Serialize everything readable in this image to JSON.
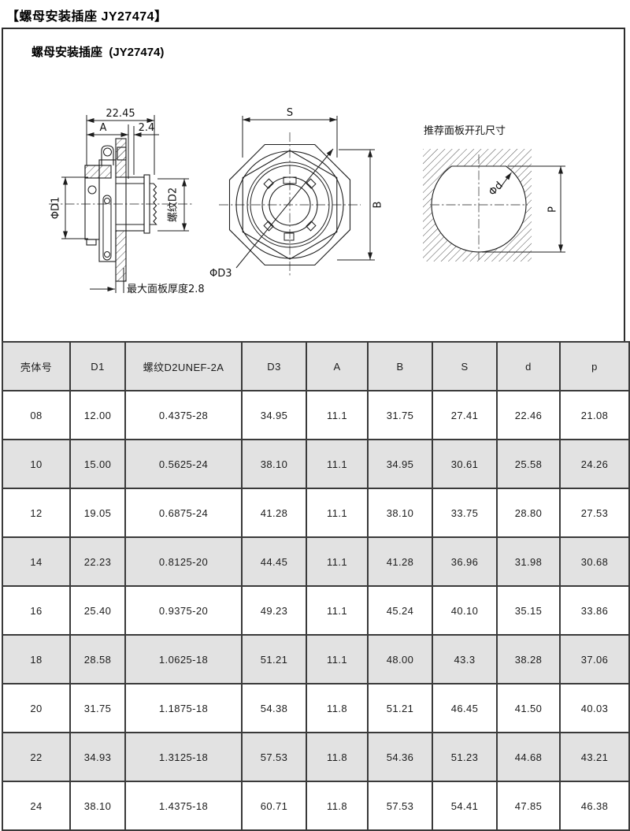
{
  "page": {
    "title": "【螺母安装插座 JY27474】",
    "subtitle": "螺母安装插座  (JY27474)"
  },
  "drawings": {
    "left": {
      "overall": "22.45",
      "a": "A",
      "protrusion": "2.4",
      "d1": "ΦD1",
      "thread": "螺纹D2",
      "panel_note": "最大面板厚度2.8"
    },
    "front": {
      "s": "S",
      "b": "B",
      "d3": "ΦD3"
    },
    "cutout": {
      "title": "推荐面板开孔尺寸",
      "d": "Φd",
      "p": "P"
    }
  },
  "table": {
    "headers": [
      "壳体号",
      "D1",
      "螺纹D2UNEF-2A",
      "D3",
      "A",
      "B",
      "S",
      "d",
      "p"
    ],
    "rows": [
      [
        "08",
        "12.00",
        "0.4375-28",
        "34.95",
        "11.1",
        "31.75",
        "27.41",
        "22.46",
        "21.08"
      ],
      [
        "10",
        "15.00",
        "0.5625-24",
        "38.10",
        "11.1",
        "34.95",
        "30.61",
        "25.58",
        "24.26"
      ],
      [
        "12",
        "19.05",
        "0.6875-24",
        "41.28",
        "11.1",
        "38.10",
        "33.75",
        "28.80",
        "27.53"
      ],
      [
        "14",
        "22.23",
        "0.8125-20",
        "44.45",
        "11.1",
        "41.28",
        "36.96",
        "31.98",
        "30.68"
      ],
      [
        "16",
        "25.40",
        "0.9375-20",
        "49.23",
        "11.1",
        "45.24",
        "40.10",
        "35.15",
        "33.86"
      ],
      [
        "18",
        "28.58",
        "1.0625-18",
        "51.21",
        "11.1",
        "48.00",
        "43.3",
        "38.28",
        "37.06"
      ],
      [
        "20",
        "31.75",
        "1.1875-18",
        "54.38",
        "11.8",
        "51.21",
        "46.45",
        "41.50",
        "40.03"
      ],
      [
        "22",
        "34.93",
        "1.3125-18",
        "57.53",
        "11.8",
        "54.36",
        "51.23",
        "44.68",
        "43.21"
      ],
      [
        "24",
        "38.10",
        "1.4375-18",
        "60.71",
        "11.8",
        "57.53",
        "54.41",
        "47.85",
        "46.38"
      ]
    ]
  },
  "colors": {
    "row_alt_bg": "#e2e2e2",
    "grid_border": "#3a3a3a",
    "drawing_line": "#1d1d1d"
  }
}
